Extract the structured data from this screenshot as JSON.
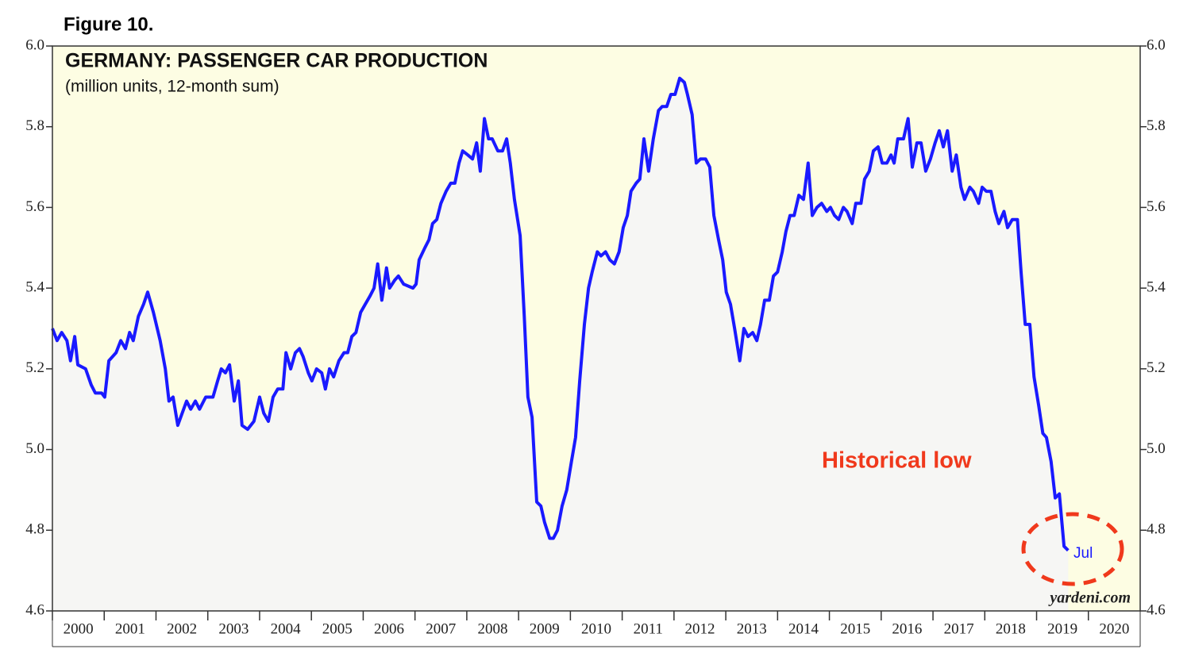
{
  "chart_data": {
    "type": "line",
    "figure_label": "Figure 10.",
    "title": "GERMANY: PASSENGER CAR PRODUCTION",
    "subtitle": "(million units, 12-month sum)",
    "annotations": [
      "Historical low",
      "Jul"
    ],
    "source": "yardeni.com",
    "xlim": [
      2000,
      2021
    ],
    "xticks": [
      2000,
      2001,
      2002,
      2003,
      2004,
      2005,
      2006,
      2007,
      2008,
      2009,
      2010,
      2011,
      2012,
      2013,
      2014,
      2015,
      2016,
      2017,
      2018,
      2019,
      2020
    ],
    "ylim": [
      4.6,
      6.0
    ],
    "yticks": [
      4.6,
      4.8,
      {
        "value": 5,
        "label": "5.0"
      },
      5.2,
      5.4,
      5.6,
      5.8,
      {
        "value": 6,
        "label": "6.0"
      }
    ],
    "y2lim": [
      4.6,
      6.0
    ],
    "x": [
      2000.0,
      2000.09,
      2000.18,
      2000.28,
      2000.35,
      2000.43,
      2000.49,
      2000.64,
      2000.75,
      2000.83,
      2000.95,
      2001.01,
      2001.09,
      2001.23,
      2001.32,
      2001.41,
      2001.49,
      2001.56,
      2001.66,
      2001.76,
      2001.84,
      2001.95,
      2002.08,
      2002.18,
      2002.25,
      2002.33,
      2002.42,
      2002.59,
      2002.67,
      2002.76,
      2002.84,
      2002.96,
      2003.1,
      2003.19,
      2003.26,
      2003.34,
      2003.42,
      2003.51,
      2003.59,
      2003.66,
      2003.77,
      2003.89,
      2004.0,
      2004.08,
      2004.17,
      2004.26,
      2004.35,
      2004.45,
      2004.51,
      2004.6,
      2004.69,
      2004.77,
      2004.84,
      2004.94,
      2005.01,
      2005.1,
      2005.2,
      2005.27,
      2005.35,
      2005.43,
      2005.53,
      2005.63,
      2005.7,
      2005.78,
      2005.86,
      2005.95,
      2006.04,
      2006.13,
      2006.21,
      2006.28,
      2006.36,
      2006.45,
      2006.51,
      2006.61,
      2006.68,
      2006.78,
      2006.96,
      2007.02,
      2007.08,
      2007.19,
      2007.27,
      2007.34,
      2007.42,
      2007.5,
      2007.6,
      2007.69,
      2007.77,
      2007.85,
      2007.92,
      2008.02,
      2008.11,
      2008.19,
      2008.26,
      2008.34,
      2008.42,
      2008.49,
      2008.6,
      2008.69,
      2008.77,
      2008.84,
      2008.92,
      2009.03,
      2009.11,
      2009.18,
      2009.26,
      2009.35,
      2009.43,
      2009.5,
      2009.6,
      2009.67,
      2009.75,
      2009.84,
      2009.93,
      2010.02,
      2010.1,
      2010.18,
      2010.27,
      2010.35,
      2010.42,
      2010.52,
      2010.59,
      2010.68,
      2010.76,
      2010.85,
      2010.94,
      2011.02,
      2011.1,
      2011.17,
      2011.27,
      2011.34,
      2011.42,
      2011.51,
      2011.6,
      2011.7,
      2011.77,
      2011.86,
      2011.94,
      2012.02,
      2012.11,
      2012.2,
      2012.26,
      2012.35,
      2012.43,
      2012.51,
      2012.61,
      2012.69,
      2012.77,
      2012.86,
      2012.94,
      2013.01,
      2013.09,
      2013.17,
      2013.27,
      2013.35,
      2013.43,
      2013.52,
      2013.6,
      2013.67,
      2013.75,
      2013.84,
      2013.92,
      2014.0,
      2014.09,
      2014.16,
      2014.24,
      2014.32,
      2014.41,
      2014.5,
      2014.59,
      2014.67,
      2014.76,
      2014.85,
      2014.95,
      2015.02,
      2015.1,
      2015.18,
      2015.27,
      2015.34,
      2015.44,
      2015.51,
      2015.61,
      2015.68,
      2015.77,
      2015.85,
      2015.94,
      2016.02,
      2016.11,
      2016.19,
      2016.25,
      2016.32,
      2016.43,
      2016.52,
      2016.6,
      2016.69,
      2016.77,
      2016.86,
      2016.95,
      2017.04,
      2017.12,
      2017.2,
      2017.28,
      2017.37,
      2017.45,
      2017.54,
      2017.61,
      2017.71,
      2017.78,
      2017.88,
      2017.95,
      2018.03,
      2018.12,
      2018.2,
      2018.27,
      2018.37,
      2018.44,
      2018.53,
      2018.63,
      2018.7,
      2018.78,
      2018.87,
      2018.95,
      2019.04,
      2019.12,
      2019.19,
      2019.28,
      2019.36,
      2019.44,
      2019.53,
      2019.61
    ],
    "series": [
      {
        "name": "Passenger car production",
        "color": "#1a1aff",
        "values": [
          5.3,
          5.27,
          5.29,
          5.27,
          5.22,
          5.28,
          5.21,
          5.2,
          5.16,
          5.14,
          5.14,
          5.13,
          5.22,
          5.24,
          5.27,
          5.25,
          5.29,
          5.27,
          5.33,
          5.36,
          5.39,
          5.34,
          5.27,
          5.2,
          5.12,
          5.13,
          5.06,
          5.12,
          5.1,
          5.12,
          5.1,
          5.13,
          5.13,
          5.17,
          5.2,
          5.19,
          5.21,
          5.12,
          5.17,
          5.06,
          5.05,
          5.07,
          5.13,
          5.09,
          5.07,
          5.13,
          5.15,
          5.15,
          5.24,
          5.2,
          5.24,
          5.25,
          5.23,
          5.19,
          5.17,
          5.2,
          5.19,
          5.15,
          5.2,
          5.18,
          5.22,
          5.24,
          5.24,
          5.28,
          5.29,
          5.34,
          5.36,
          5.38,
          5.4,
          5.46,
          5.37,
          5.45,
          5.4,
          5.42,
          5.43,
          5.41,
          5.4,
          5.41,
          5.47,
          5.5,
          5.52,
          5.56,
          5.57,
          5.61,
          5.64,
          5.66,
          5.66,
          5.71,
          5.74,
          5.73,
          5.72,
          5.76,
          5.69,
          5.82,
          5.77,
          5.77,
          5.74,
          5.74,
          5.77,
          5.71,
          5.62,
          5.53,
          5.33,
          5.13,
          5.08,
          4.87,
          4.86,
          4.82,
          4.78,
          4.78,
          4.8,
          4.86,
          4.9,
          4.97,
          5.03,
          5.17,
          5.31,
          5.4,
          5.44,
          5.49,
          5.48,
          5.49,
          5.47,
          5.46,
          5.49,
          5.55,
          5.58,
          5.64,
          5.66,
          5.67,
          5.77,
          5.69,
          5.77,
          5.84,
          5.85,
          5.85,
          5.88,
          5.88,
          5.92,
          5.91,
          5.88,
          5.83,
          5.71,
          5.72,
          5.72,
          5.7,
          5.58,
          5.52,
          5.47,
          5.39,
          5.36,
          5.3,
          5.22,
          5.3,
          5.28,
          5.29,
          5.27,
          5.31,
          5.37,
          5.37,
          5.43,
          5.44,
          5.49,
          5.54,
          5.58,
          5.58,
          5.63,
          5.62,
          5.71,
          5.58,
          5.6,
          5.61,
          5.59,
          5.6,
          5.58,
          5.57,
          5.6,
          5.59,
          5.56,
          5.61,
          5.61,
          5.67,
          5.69,
          5.74,
          5.75,
          5.71,
          5.71,
          5.73,
          5.71,
          5.77,
          5.77,
          5.82,
          5.7,
          5.76,
          5.76,
          5.69,
          5.72,
          5.76,
          5.79,
          5.75,
          5.79,
          5.69,
          5.73,
          5.65,
          5.62,
          5.65,
          5.64,
          5.61,
          5.65,
          5.64,
          5.64,
          5.59,
          5.56,
          5.59,
          5.55,
          5.57,
          5.57,
          5.44,
          5.31,
          5.31,
          5.18,
          5.11,
          5.04,
          5.03,
          4.97,
          4.88,
          4.89,
          4.76,
          4.75
        ]
      }
    ]
  }
}
